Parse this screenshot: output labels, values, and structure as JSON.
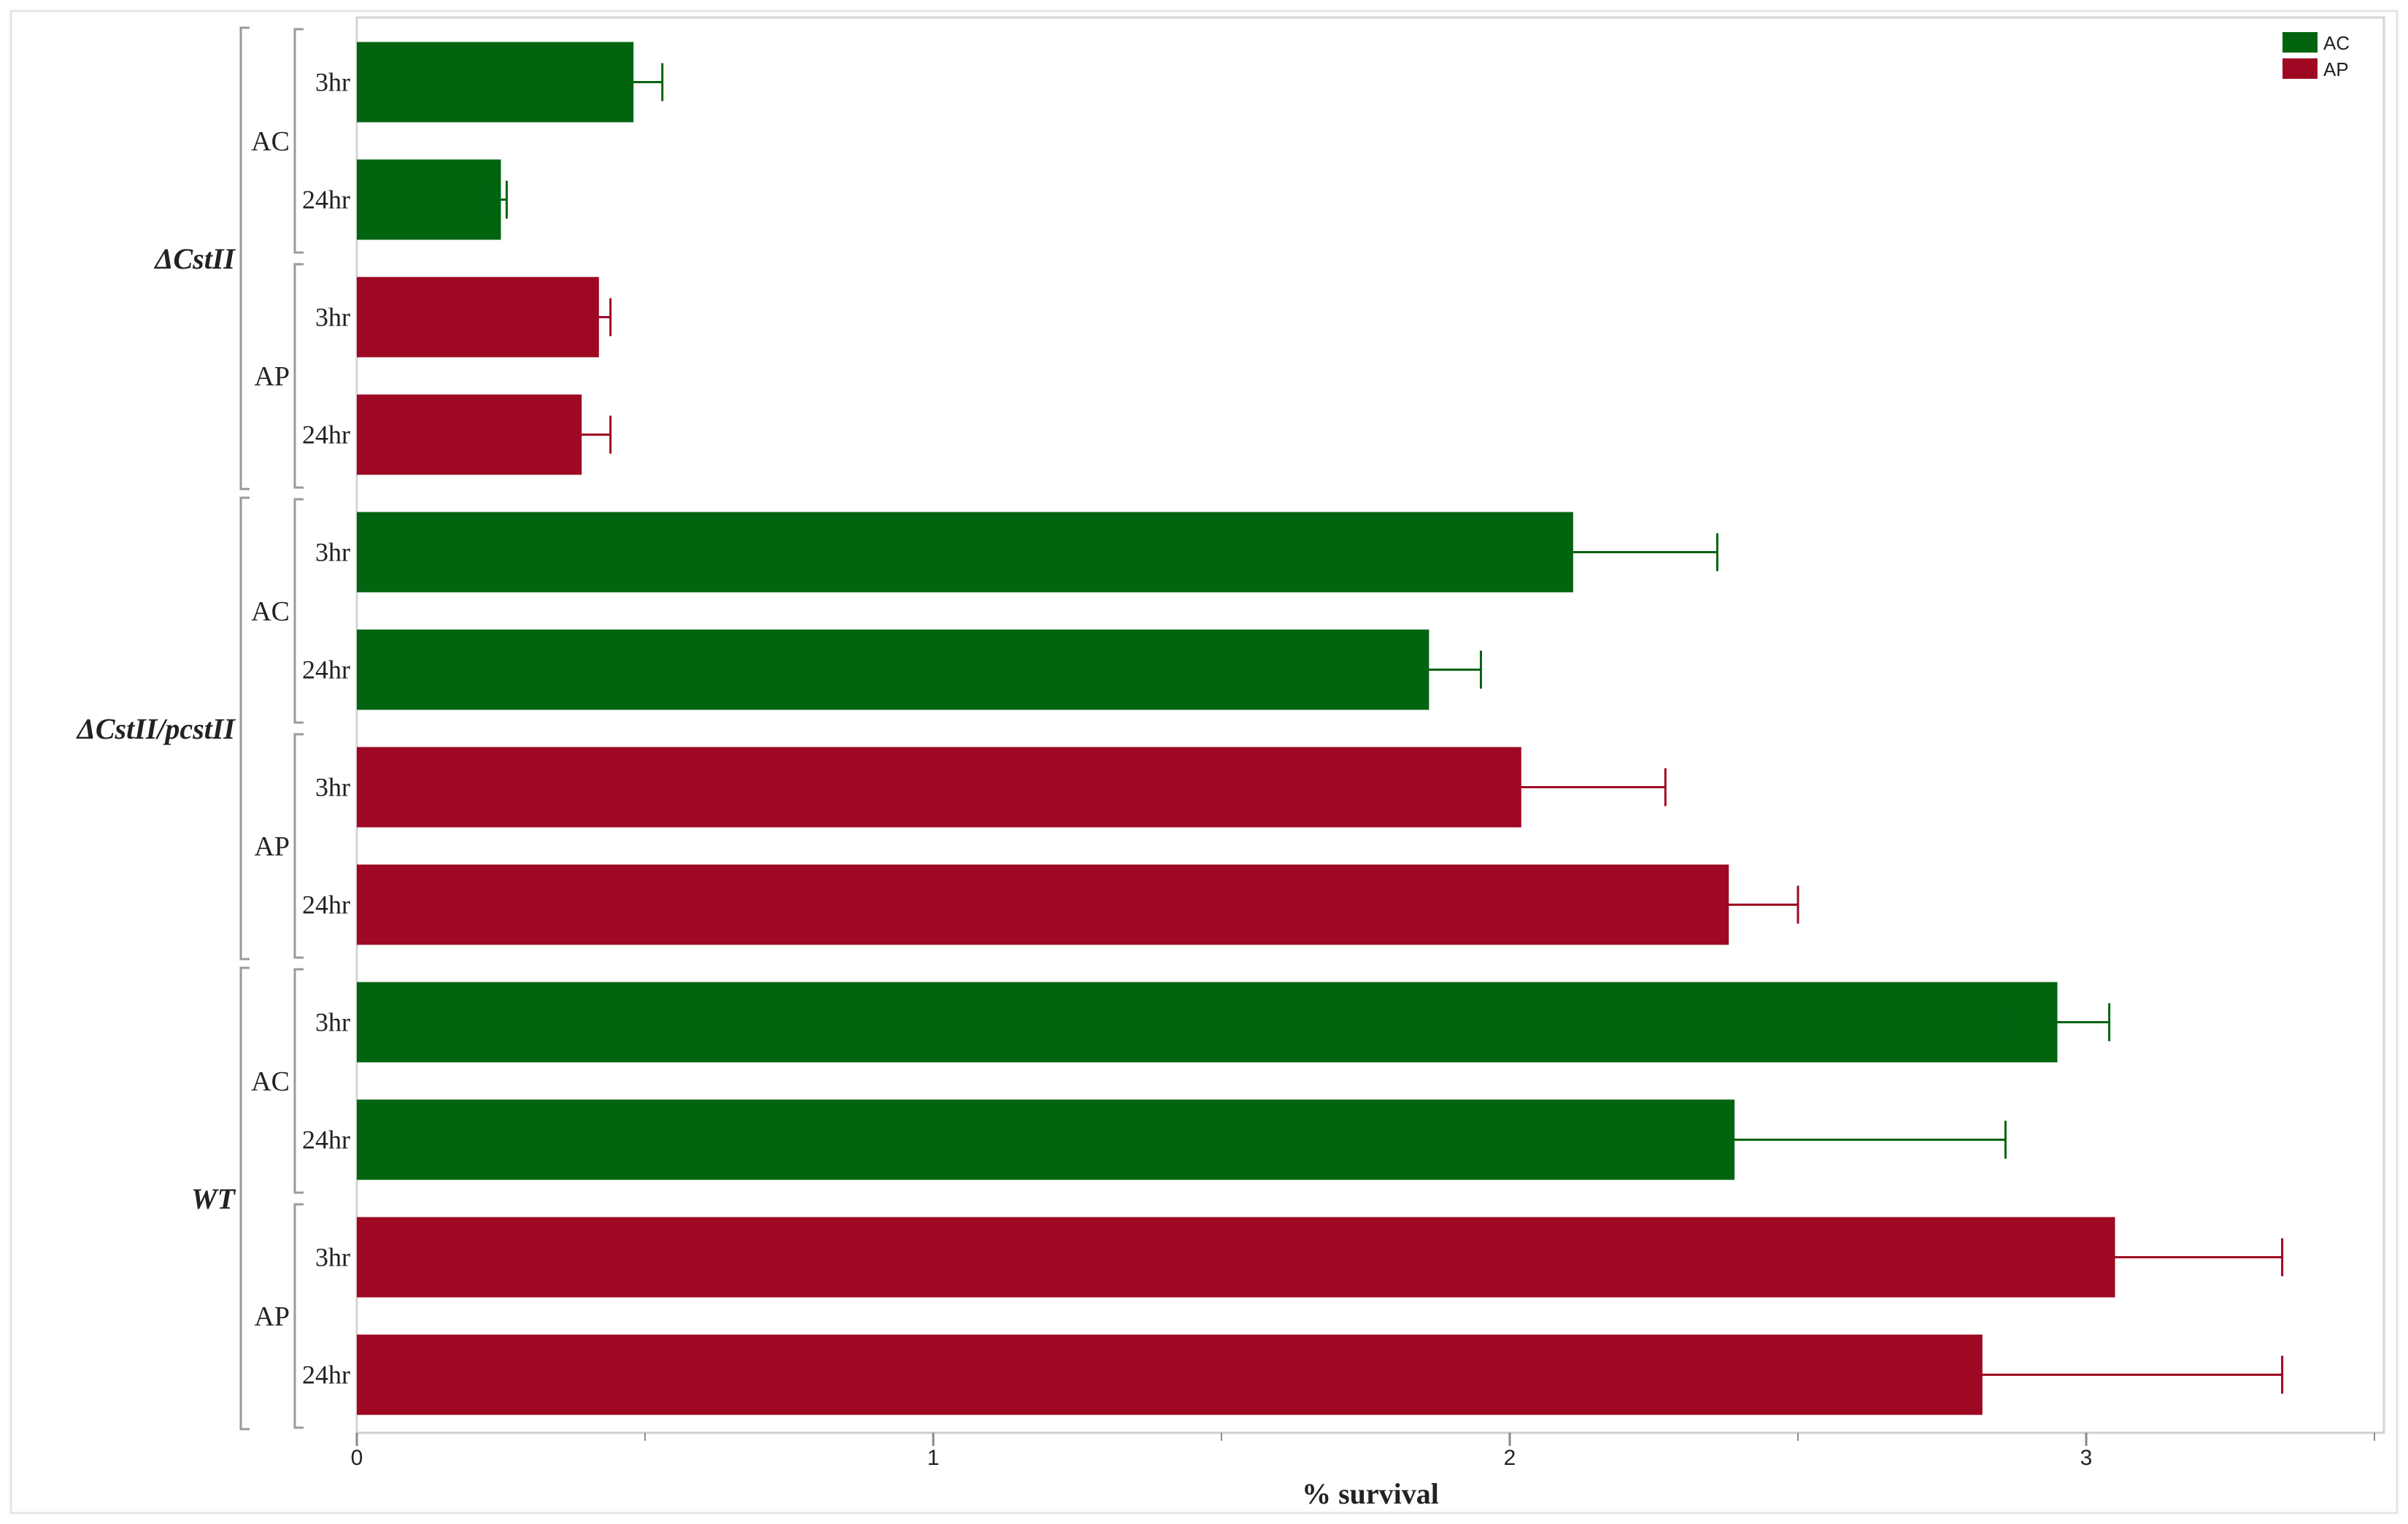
{
  "chart_data": {
    "type": "bar",
    "orientation": "horizontal",
    "title": "",
    "xlabel": "% survival",
    "ylabel": "",
    "xlim": [
      0,
      3.5
    ],
    "x_ticks": [
      0,
      1,
      2,
      3
    ],
    "x_minor_ticks": [
      0.5,
      1.5,
      2.5,
      3.5
    ],
    "grid": false,
    "legend": {
      "position": "top-right",
      "entries": [
        {
          "name": "AC",
          "color": "#036410"
        },
        {
          "name": "AP",
          "color": "#9e0822"
        }
      ]
    },
    "groups": [
      {
        "name": "ΔCstII",
        "subgroups": [
          {
            "name": "AC",
            "bars": [
              {
                "label": "3hr",
                "value": 0.48,
                "err_low": 0.43,
                "err_high": 0.53
              },
              {
                "label": "24hr",
                "value": 0.25,
                "err_low": 0.23,
                "err_high": 0.26
              }
            ]
          },
          {
            "name": "AP",
            "bars": [
              {
                "label": "3hr",
                "value": 0.42,
                "err_low": 0.4,
                "err_high": 0.44
              },
              {
                "label": "24hr",
                "value": 0.39,
                "err_low": 0.35,
                "err_high": 0.44
              }
            ]
          }
        ]
      },
      {
        "name": "ΔCstII/pcstII",
        "subgroups": [
          {
            "name": "AC",
            "bars": [
              {
                "label": "3hr",
                "value": 2.11,
                "err_low": 1.86,
                "err_high": 2.36
              },
              {
                "label": "24hr",
                "value": 1.86,
                "err_low": 1.77,
                "err_high": 1.95
              }
            ]
          },
          {
            "name": "AP",
            "bars": [
              {
                "label": "3hr",
                "value": 2.02,
                "err_low": 1.77,
                "err_high": 2.27
              },
              {
                "label": "24hr",
                "value": 2.38,
                "err_low": 2.27,
                "err_high": 2.5
              }
            ]
          }
        ]
      },
      {
        "name": "WT",
        "subgroups": [
          {
            "name": "AC",
            "bars": [
              {
                "label": "3hr",
                "value": 2.95,
                "err_low": 2.86,
                "err_high": 3.04
              },
              {
                "label": "24hr",
                "value": 2.39,
                "err_low": 1.91,
                "err_high": 2.86
              }
            ]
          },
          {
            "name": "AP",
            "bars": [
              {
                "label": "3hr",
                "value": 3.05,
                "err_low": 2.77,
                "err_high": 3.34
              },
              {
                "label": "24hr",
                "value": 2.82,
                "err_low": 2.3,
                "err_high": 3.34
              }
            ]
          }
        ]
      }
    ]
  }
}
